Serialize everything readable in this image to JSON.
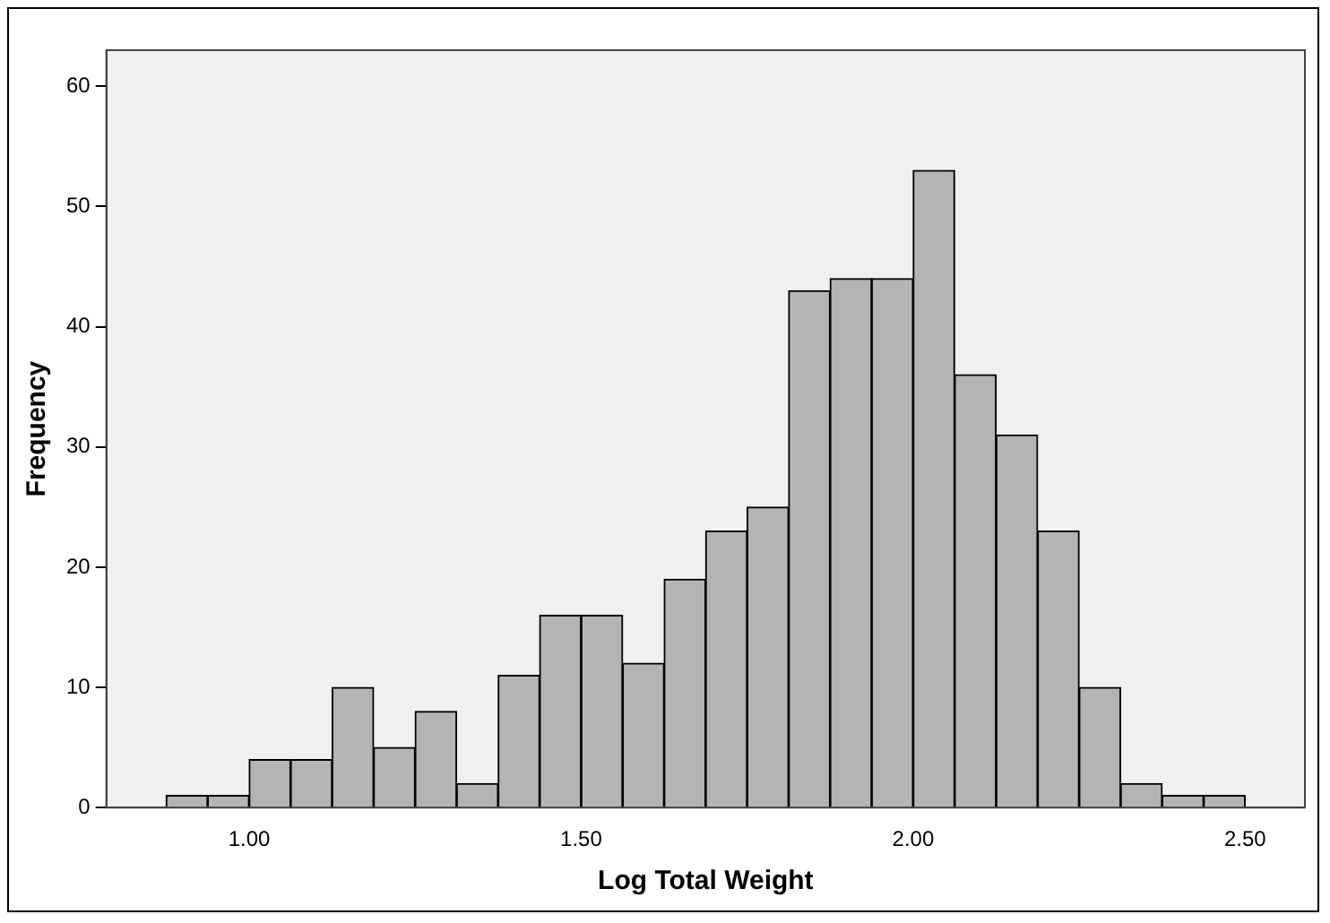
{
  "chart_data": {
    "type": "histogram",
    "xlabel": "Log Total Weight",
    "ylabel": "Frequency",
    "bins": [
      0.875,
      0.9375,
      1.0,
      1.0625,
      1.125,
      1.1875,
      1.25,
      1.3125,
      1.375,
      1.4375,
      1.5,
      1.5625,
      1.625,
      1.6875,
      1.75,
      1.8125,
      1.875,
      1.9375,
      2.0,
      2.0625,
      2.125,
      2.1875,
      2.25,
      2.3125,
      2.375,
      2.4375,
      2.5
    ],
    "values": [
      1,
      1,
      4,
      4,
      10,
      5,
      8,
      2,
      11,
      16,
      16,
      12,
      19,
      23,
      25,
      43,
      44,
      44,
      53,
      36,
      31,
      23,
      10,
      2,
      1,
      1
    ],
    "color": "#b4b4b4",
    "xlim": [
      0.785,
      2.59
    ],
    "xticks": [
      {
        "value": 1.0,
        "label": "1.00"
      },
      {
        "value": 1.5,
        "label": "1.50"
      },
      {
        "value": 2.0,
        "label": "2.00"
      },
      {
        "value": 2.5,
        "label": "2.50"
      }
    ],
    "ylim": [
      0,
      63
    ],
    "yticks": [
      0,
      10,
      20,
      30,
      40,
      50,
      60
    ],
    "grid": false,
    "legend": false
  }
}
